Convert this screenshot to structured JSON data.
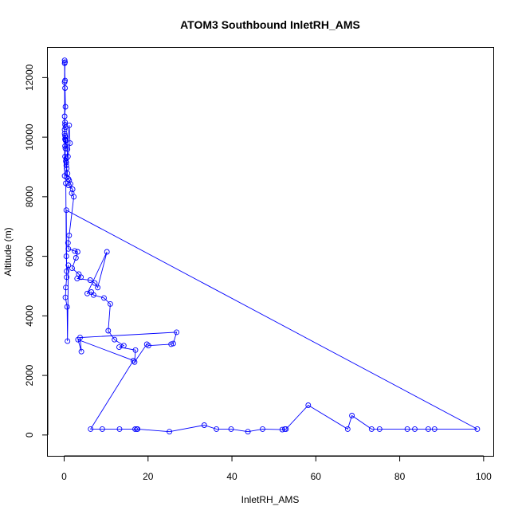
{
  "chart_data": {
    "type": "line",
    "title": "ATOM3 Southbound InletRH_AMS",
    "xlabel": "InletRH_AMS",
    "ylabel": "Altitude (m)",
    "xlim": [
      -3.9,
      102.5
    ],
    "ylim": [
      -700,
      13000
    ],
    "xticks": [
      0,
      20,
      40,
      60,
      80,
      100
    ],
    "yticks": [
      0,
      2000,
      4000,
      6000,
      8000,
      10000,
      12000
    ],
    "grid": false,
    "color": "#0000ff",
    "marker": "open-circle",
    "series": [
      {
        "x": [
          0.1,
          0.2,
          0.1,
          0.2,
          0.3,
          0.1,
          0.2,
          0.2,
          0.3,
          0.1,
          0.1,
          0.3,
          0.2,
          0.4,
          0.2,
          0.3,
          0.2,
          0.5,
          0.4,
          0.5,
          0.5,
          0.6,
          0.8,
          0.6,
          1.0,
          1.2,
          1.5,
          1.1,
          2.0,
          1.8,
          2.3,
          1.2,
          0.9,
          1.0,
          2.5,
          3.2,
          2.8,
          1.9,
          3.5,
          4.0,
          3.1,
          6.2,
          7.3,
          8.0,
          10.2,
          5.5,
          6.5,
          7.0,
          9.5,
          11.0,
          10.5,
          12.0,
          14.2,
          13.1,
          17.0,
          16.8,
          19.7,
          20.1,
          25.5,
          26.0,
          26.8,
          3.8,
          4.1,
          3.3,
          16.5,
          6.3,
          9.1,
          13.2,
          16.9,
          17.3,
          17.5,
          25.1,
          33.4,
          36.3,
          39.8,
          43.8,
          47.3,
          52.0,
          52.6,
          52.9,
          58.2,
          67.6,
          68.6,
          73.3,
          75.2,
          81.8,
          83.6,
          86.8,
          88.3,
          98.5,
          0.5,
          0.6,
          0.4,
          0.3,
          0.7,
          0.8,
          1.0,
          0.6,
          0.5,
          0.4,
          0.8,
          1.2,
          1.4,
          0.9,
          0.2,
          0.3,
          0.1,
          0.1,
          0.2
        ],
        "y": [
          12580,
          12520,
          11850,
          11650,
          11020,
          10700,
          10500,
          10420,
          10330,
          10250,
          10120,
          10000,
          9930,
          9880,
          9700,
          9620,
          9350,
          9280,
          9200,
          9150,
          9050,
          8950,
          8780,
          8650,
          8600,
          8550,
          8430,
          8380,
          8250,
          8120,
          8000,
          6700,
          6450,
          6250,
          6180,
          6150,
          5950,
          5600,
          5400,
          5300,
          5250,
          5200,
          5100,
          4950,
          6150,
          4750,
          4800,
          4700,
          4600,
          4400,
          3500,
          3200,
          3000,
          2950,
          2850,
          2450,
          3050,
          3000,
          3050,
          3070,
          3450,
          3270,
          2800,
          3200,
          2500,
          200,
          200,
          200,
          200,
          200,
          200,
          110,
          330,
          200,
          200,
          110,
          200,
          180,
          200,
          200,
          1000,
          200,
          650,
          200,
          200,
          200,
          200,
          200,
          200,
          200,
          7550,
          5300,
          4950,
          4620,
          4300,
          3150,
          5700,
          5500,
          6000,
          8450,
          9600,
          10400,
          9800,
          9350,
          10050,
          9900,
          8700,
          12480,
          11900
        ]
      }
    ]
  }
}
